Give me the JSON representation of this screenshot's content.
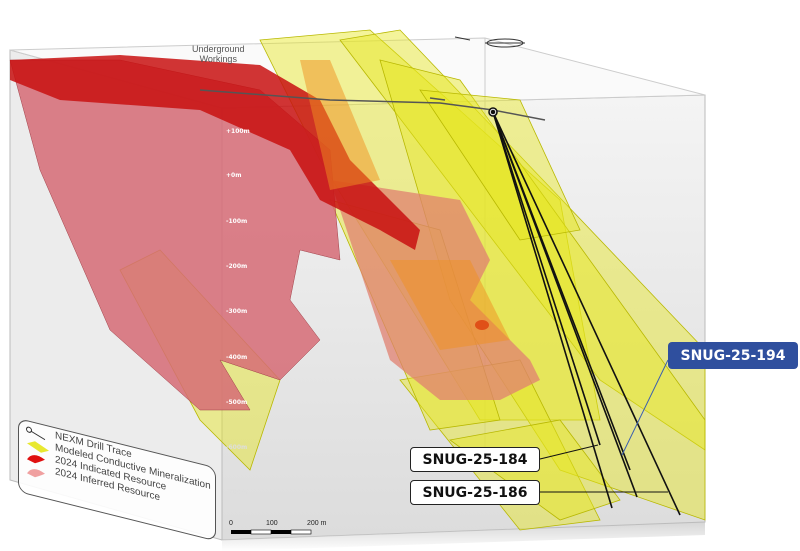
{
  "annotations": {
    "underground_workings": [
      "Underground",
      "Workings"
    ],
    "callouts": [
      {
        "label": "SNUG-25-194",
        "style": "blue",
        "color": "#2f4f9e"
      },
      {
        "label": "SNUG-25-184",
        "style": "white"
      },
      {
        "label": "SNUG-25-186",
        "style": "white"
      }
    ]
  },
  "depth_ticks": [
    "+100m",
    "+0m",
    "-100m",
    "-200m",
    "-300m",
    "-400m",
    "-500m",
    "-600m",
    "-700m"
  ],
  "legend": {
    "items": [
      {
        "label": "NEXM Drill Trace",
        "icon": "drill-trace-icon"
      },
      {
        "label": "Modeled Conductive Mineralization",
        "icon": "yellow-plate-icon",
        "color": "#e8e830"
      },
      {
        "label": "2024 Indicated Resource",
        "icon": "red-blob-icon",
        "color": "#e01010"
      },
      {
        "label": "2024 Inferred Resource",
        "icon": "pink-blob-icon",
        "color": "#f0a0a0"
      }
    ]
  },
  "scale_bar": {
    "ticks": [
      "0",
      "100",
      "200 m"
    ]
  },
  "colors": {
    "indicated": "#c81010",
    "inferred": "#d87078",
    "conductor": "#e6e620",
    "drill": "#111111"
  }
}
